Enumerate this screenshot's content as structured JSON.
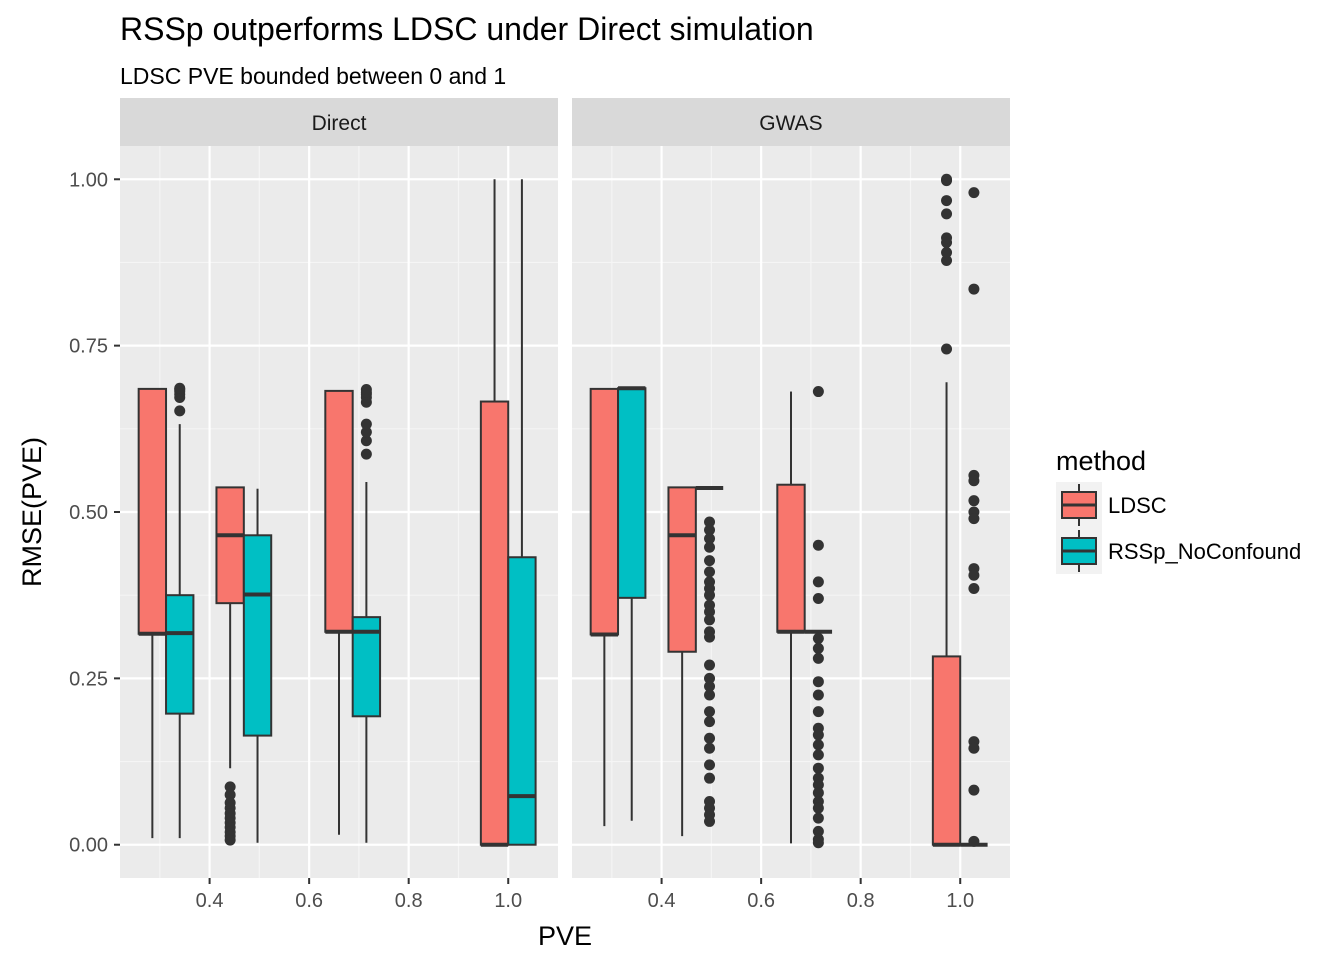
{
  "title": "RSSp outperforms LDSC under Direct simulation",
  "subtitle": "LDSC PVE bounded between 0 and 1",
  "chart_data": {
    "type": "boxplot",
    "title": "RSSp outperforms LDSC under Direct simulation",
    "subtitle": "LDSC PVE bounded between 0 and 1",
    "xlabel": "PVE",
    "ylabel": "RMSE(PVE)",
    "xlim": [
      0.22,
      1.1
    ],
    "ylim": [
      -0.05,
      1.05
    ],
    "x_ticks": [
      0.4,
      0.6,
      0.8,
      1.0
    ],
    "x_tick_labels": [
      "0.4",
      "0.6",
      "0.8",
      "1.0"
    ],
    "y_ticks": [
      0.0,
      0.25,
      0.5,
      0.75,
      1.0
    ],
    "y_tick_labels": [
      "0.00",
      "0.25",
      "0.50",
      "0.75",
      "1.00"
    ],
    "grid": true,
    "box_offset": 0.0275,
    "box_width": 0.055,
    "legend": {
      "title": "method",
      "placement": "right",
      "entries": [
        {
          "name": "LDSC",
          "color": "#F8766D"
        },
        {
          "name": "RSSp_NoConfound",
          "color": "#00BFC4"
        }
      ]
    },
    "colors": {
      "LDSC": "#F8766D",
      "RSSp_NoConfound": "#00BFC4"
    },
    "panels": [
      {
        "name": "Direct",
        "boxes": [
          {
            "method": "LDSC",
            "pve": 0.3125,
            "whisker_low": 0.01,
            "q1": 0.317,
            "median": 0.317,
            "q3": 0.685,
            "whisker_high": 0.685,
            "outliers": []
          },
          {
            "method": "RSSp_NoConfound",
            "pve": 0.3125,
            "whisker_low": 0.01,
            "q1": 0.197,
            "median": 0.318,
            "q3": 0.375,
            "whisker_high": 0.632,
            "outliers": [
              0.652,
              0.672,
              0.677,
              0.681,
              0.684,
              0.686
            ]
          },
          {
            "method": "LDSC",
            "pve": 0.4688,
            "whisker_low": 0.115,
            "q1": 0.363,
            "median": 0.465,
            "q3": 0.537,
            "whisker_high": 0.537,
            "outliers": [
              0.087,
              0.075,
              0.063,
              0.055,
              0.047,
              0.04,
              0.033,
              0.026,
              0.019,
              0.013,
              0.007
            ]
          },
          {
            "method": "RSSp_NoConfound",
            "pve": 0.4688,
            "whisker_low": 0.003,
            "q1": 0.164,
            "median": 0.376,
            "q3": 0.465,
            "whisker_high": 0.535,
            "outliers": []
          },
          {
            "method": "LDSC",
            "pve": 0.6875,
            "whisker_low": 0.015,
            "q1": 0.32,
            "median": 0.32,
            "q3": 0.682,
            "whisker_high": 0.682,
            "outliers": []
          },
          {
            "method": "RSSp_NoConfound",
            "pve": 0.6875,
            "whisker_low": 0.003,
            "q1": 0.193,
            "median": 0.32,
            "q3": 0.342,
            "whisker_high": 0.545,
            "outliers": [
              0.587,
              0.607,
              0.62,
              0.632,
              0.665,
              0.672,
              0.677,
              0.68,
              0.684
            ]
          },
          {
            "method": "LDSC",
            "pve": 1.0,
            "whisker_low": 0.0,
            "q1": 0.0,
            "median": 0.0,
            "q3": 0.666,
            "whisker_high": 1.0,
            "outliers": []
          },
          {
            "method": "RSSp_NoConfound",
            "pve": 1.0,
            "whisker_low": 0.0,
            "q1": 0.0,
            "median": 0.073,
            "q3": 0.432,
            "whisker_high": 1.0,
            "outliers": []
          }
        ]
      },
      {
        "name": "GWAS",
        "boxes": [
          {
            "method": "LDSC",
            "pve": 0.3125,
            "whisker_low": 0.028,
            "q1": 0.316,
            "median": 0.316,
            "q3": 0.685,
            "whisker_high": 0.685,
            "outliers": []
          },
          {
            "method": "RSSp_NoConfound",
            "pve": 0.3125,
            "whisker_low": 0.036,
            "q1": 0.371,
            "median": 0.686,
            "q3": 0.686,
            "whisker_high": 0.686,
            "outliers": []
          },
          {
            "method": "LDSC",
            "pve": 0.4688,
            "whisker_low": 0.013,
            "q1": 0.29,
            "median": 0.465,
            "q3": 0.537,
            "whisker_high": 0.537,
            "outliers": []
          },
          {
            "method": "RSSp_NoConfound",
            "pve": 0.4688,
            "whisker_low": 0.536,
            "q1": 0.536,
            "median": 0.536,
            "q3": 0.536,
            "whisker_high": 0.536,
            "outliers": [
              0.485,
              0.473,
              0.46,
              0.447,
              0.427,
              0.41,
              0.395,
              0.385,
              0.375,
              0.36,
              0.35,
              0.338,
              0.32,
              0.312,
              0.27,
              0.25,
              0.238,
              0.225,
              0.2,
              0.185,
              0.16,
              0.145,
              0.12,
              0.1,
              0.065,
              0.055,
              0.045,
              0.035
            ]
          },
          {
            "method": "LDSC",
            "pve": 0.6875,
            "whisker_low": 0.002,
            "q1": 0.32,
            "median": 0.32,
            "q3": 0.541,
            "whisker_high": 0.681,
            "outliers": []
          },
          {
            "method": "RSSp_NoConfound",
            "pve": 0.6875,
            "whisker_low": 0.32,
            "q1": 0.32,
            "median": 0.32,
            "q3": 0.32,
            "whisker_high": 0.32,
            "outliers": [
              0.681,
              0.45,
              0.395,
              0.37,
              0.31,
              0.295,
              0.28,
              0.245,
              0.225,
              0.2,
              0.175,
              0.165,
              0.15,
              0.135,
              0.115,
              0.1,
              0.09,
              0.078,
              0.065,
              0.055,
              0.04,
              0.02,
              0.008,
              0.003
            ]
          },
          {
            "method": "LDSC",
            "pve": 1.0,
            "whisker_low": 0.0,
            "q1": 0.0,
            "median": 0.0,
            "q3": 0.283,
            "whisker_high": 0.695,
            "outliers": [
              0.745,
              0.878,
              0.89,
              0.905,
              0.912,
              0.948,
              0.968,
              0.998,
              1.0
            ]
          },
          {
            "method": "RSSp_NoConfound",
            "pve": 1.0,
            "whisker_low": 0.0,
            "q1": 0.0,
            "median": 0.0,
            "q3": 0.0,
            "whisker_high": 0.0,
            "outliers": [
              0.98,
              0.835,
              0.555,
              0.547,
              0.517,
              0.5,
              0.49,
              0.415,
              0.405,
              0.385,
              0.155,
              0.145,
              0.082,
              0.005
            ]
          }
        ]
      }
    ]
  }
}
